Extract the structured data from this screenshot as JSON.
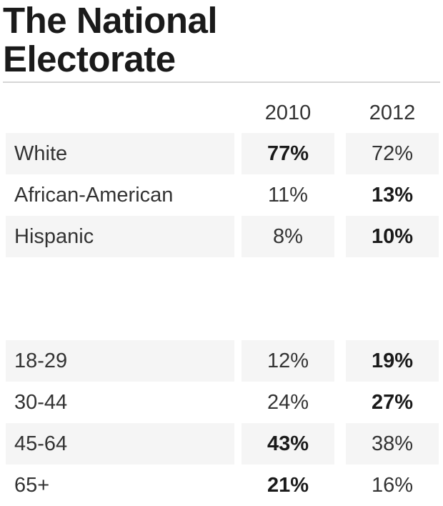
{
  "chart_data": {
    "type": "table",
    "title": "The National Electorate",
    "columns": [
      "2010",
      "2012"
    ],
    "groups": [
      {
        "rows": [
          {
            "label": "White",
            "values": [
              "77%",
              "72%"
            ],
            "bold": [
              true,
              false
            ]
          },
          {
            "label": "African-American",
            "values": [
              "11%",
              "13%"
            ],
            "bold": [
              false,
              true
            ]
          },
          {
            "label": "Hispanic",
            "values": [
              "8%",
              "10%"
            ],
            "bold": [
              false,
              true
            ]
          }
        ]
      },
      {
        "rows": [
          {
            "label": "18-29",
            "values": [
              "12%",
              "19%"
            ],
            "bold": [
              false,
              true
            ]
          },
          {
            "label": "30-44",
            "values": [
              "24%",
              "27%"
            ],
            "bold": [
              false,
              true
            ]
          },
          {
            "label": "45-64",
            "values": [
              "43%",
              "38%"
            ],
            "bold": [
              true,
              false
            ]
          },
          {
            "label": "65+",
            "values": [
              "21%",
              "16%"
            ],
            "bold": [
              true,
              false
            ]
          }
        ]
      }
    ]
  },
  "title_lines": [
    "The National",
    "Electorate"
  ],
  "colors": {
    "title": "#1a1a1a",
    "text": "#333333",
    "row_shade": "#f5f5f5",
    "rule": "#d6d6d6"
  }
}
